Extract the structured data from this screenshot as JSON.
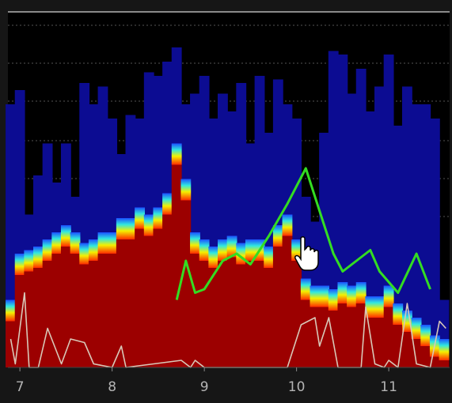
{
  "chart_data": {
    "type": "spectrogram",
    "xlim": [
      6.87,
      11.66
    ],
    "xticks": [
      7,
      8,
      9,
      10,
      11
    ],
    "ylim": [
      0,
      100
    ],
    "columns": [
      6.9,
      7.0,
      7.1,
      7.2,
      7.3,
      7.4,
      7.5,
      7.6,
      7.7,
      7.8,
      7.9,
      8.0,
      8.1,
      8.2,
      8.3,
      8.4,
      8.5,
      8.6,
      8.7,
      8.8,
      8.9,
      9.0,
      9.1,
      9.2,
      9.3,
      9.4,
      9.5,
      9.6,
      9.7,
      9.8,
      9.9,
      10.0,
      10.1,
      10.2,
      10.3,
      10.4,
      10.5,
      10.6,
      10.7,
      10.8,
      10.9,
      11.0,
      11.1,
      11.2,
      11.3,
      11.4,
      11.5,
      11.6
    ],
    "series": [
      {
        "color": "#0c0c92",
        "values": [
          74,
          78,
          43,
          54,
          63,
          52,
          63,
          48,
          80,
          74,
          79,
          70,
          60,
          71,
          70,
          83,
          82,
          86,
          90,
          74,
          77,
          82,
          70,
          77,
          72,
          80,
          63,
          82,
          66,
          81,
          74,
          70,
          48,
          41,
          66,
          89,
          88,
          77,
          84,
          72,
          79,
          88,
          68,
          79,
          74,
          74,
          70,
          19
        ]
      },
      {
        "color": "#9c0000",
        "values": [
          13,
          26,
          27,
          28,
          30,
          32,
          34,
          32,
          29,
          30,
          32,
          32,
          36,
          36,
          39,
          37,
          39,
          43,
          57,
          47,
          32,
          30,
          28,
          30,
          31,
          29,
          30,
          30,
          28,
          34,
          37,
          30,
          19,
          17,
          17,
          16,
          18,
          17,
          18,
          14,
          14,
          17,
          12,
          10,
          8,
          6,
          3,
          2
        ]
      }
    ],
    "lines": [
      {
        "color": "#33dd22",
        "x": [
          8.7,
          8.8,
          8.9,
          9.0,
          9.2,
          9.35,
          9.5,
          9.7,
          9.9,
          10.1,
          10.25,
          10.4,
          10.5,
          10.6,
          10.8,
          10.9,
          11.1,
          11.3,
          11.45
        ],
        "values": [
          19,
          30,
          21,
          22,
          30,
          32,
          29,
          37,
          46,
          56,
          44,
          32,
          27,
          29,
          33,
          27,
          21,
          32,
          22
        ]
      },
      {
        "color": "#d8c8b8",
        "x": [
          6.9,
          6.95,
          7.05,
          7.1,
          7.2,
          7.3,
          7.45,
          7.55,
          7.7,
          7.8,
          8.0,
          8.1,
          8.15,
          8.75,
          8.85,
          8.9,
          9.0,
          9.9,
          10.05,
          10.2,
          10.25,
          10.35,
          10.45,
          10.7,
          10.75,
          10.85,
          10.95,
          11.0,
          11.1,
          11.2,
          11.3,
          11.45,
          11.55,
          11.62
        ],
        "values": [
          8,
          1,
          21,
          0,
          0,
          11,
          1,
          8,
          7,
          1,
          0,
          6,
          0,
          2,
          0,
          2,
          0,
          0,
          12,
          14,
          6,
          14,
          0,
          0,
          17,
          1,
          0,
          2,
          0,
          18,
          1,
          0,
          13,
          11
        ]
      }
    ]
  }
}
